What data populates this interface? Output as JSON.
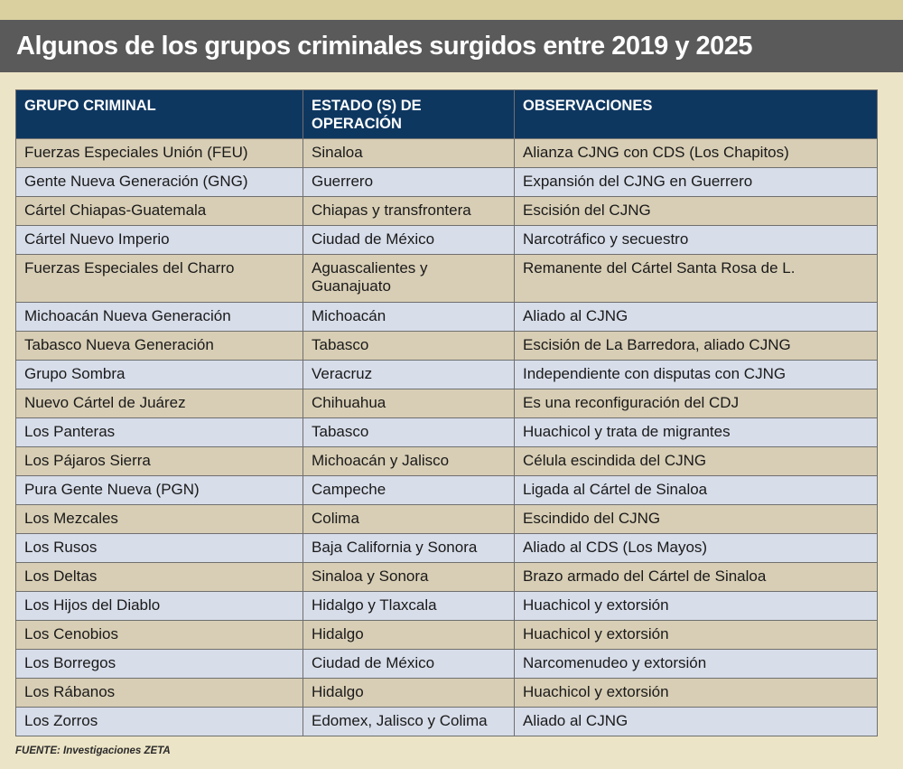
{
  "title": "Algunos de los grupos criminales surgidos entre 2019 y 2025",
  "table": {
    "headers": [
      "GRUPO CRIMINAL",
      "ESTADO (S) DE OPERACIÓN",
      "OBSERVACIONES"
    ],
    "rows": [
      [
        "Fuerzas Especiales Unión (FEU)",
        "Sinaloa",
        "Alianza CJNG con CDS (Los Chapitos)"
      ],
      [
        "Gente Nueva Generación (GNG)",
        "Guerrero",
        "Expansión del CJNG en Guerrero"
      ],
      [
        "Cártel Chiapas-Guatemala",
        "Chiapas y transfrontera",
        "Escisión del CJNG"
      ],
      [
        "Cártel Nuevo Imperio",
        "Ciudad de México",
        "Narcotráfico y secuestro"
      ],
      [
        "Fuerzas Especiales del Charro",
        "Aguascalientes y Guanajuato",
        "Remanente del Cártel Santa Rosa de L."
      ],
      [
        "Michoacán Nueva Generación",
        "Michoacán",
        "Aliado al CJNG"
      ],
      [
        "Tabasco Nueva Generación",
        "Tabasco",
        "Escisión de La Barredora, aliado CJNG"
      ],
      [
        "Grupo Sombra",
        "Veracruz",
        "Independiente con disputas con CJNG"
      ],
      [
        "Nuevo Cártel de Juárez",
        "Chihuahua",
        "Es una reconfiguración del CDJ"
      ],
      [
        "Los Panteras",
        "Tabasco",
        "Huachicol y trata de migrantes"
      ],
      [
        "Los Pájaros Sierra",
        "Michoacán y Jalisco",
        "Célula escindida del CJNG"
      ],
      [
        "Pura Gente Nueva (PGN)",
        "Campeche",
        "Ligada al Cártel de Sinaloa"
      ],
      [
        "Los Mezcales",
        "Colima",
        "Escindido del CJNG"
      ],
      [
        "Los Rusos",
        "Baja California y Sonora",
        "Aliado al CDS (Los Mayos)"
      ],
      [
        "Los Deltas",
        "Sinaloa y Sonora",
        "Brazo armado del Cártel de Sinaloa"
      ],
      [
        "Los Hijos del Diablo",
        "Hidalgo y Tlaxcala",
        "Huachicol y extorsión"
      ],
      [
        "Los Cenobios",
        "Hidalgo",
        "Huachicol y extorsión"
      ],
      [
        "Los Borregos",
        "Ciudad de México",
        "Narcomenudeo y extorsión"
      ],
      [
        "Los Rábanos",
        "Hidalgo",
        "Huachicol y extorsión"
      ],
      [
        "Los Zorros",
        "Edomex, Jalisco y Colima",
        "Aliado al CJNG"
      ]
    ]
  },
  "source": "FUENTE: Investigaciones ZETA",
  "colors": {
    "header_bg": "#0e3760",
    "title_bg": "#5a5a5a",
    "row_beige": "#d8ceb5",
    "row_blue": "#d7dde9",
    "page_bg": "#ece4c6"
  }
}
